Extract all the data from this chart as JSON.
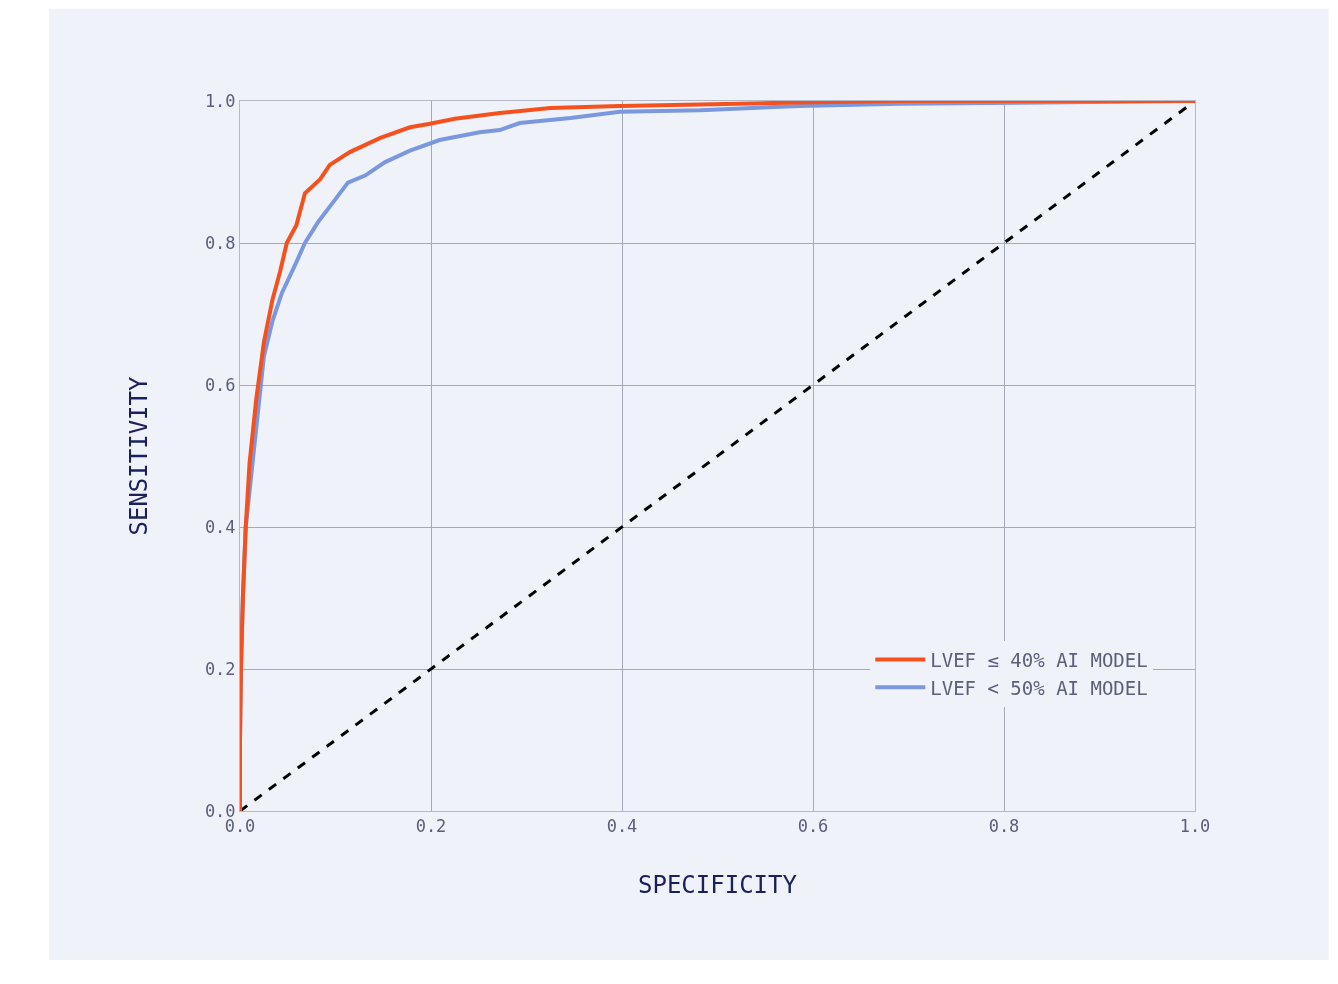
{
  "chart_data": {
    "type": "line",
    "xlabel": "SPECIFICITY",
    "ylabel": "SENSITIVITY",
    "series": [
      {
        "name": "LVEF ≤ 40% AI MODEL",
        "color": "#f4511e",
        "x": [
          0,
          0,
          0.001,
          0.003,
          0.006,
          0.01,
          0.017,
          0.025,
          0.034,
          0.042,
          0.049,
          0.059,
          0.068,
          0.084,
          0.094,
          0.115,
          0.147,
          0.178,
          0.199,
          0.225,
          0.272,
          0.325,
          0.398,
          0.482,
          0.586,
          0.691,
          1
        ],
        "values": [
          0,
          0.1,
          0.2,
          0.3,
          0.4,
          0.49,
          0.58,
          0.66,
          0.72,
          0.76,
          0.8,
          0.825,
          0.87,
          0.89,
          0.91,
          0.928,
          0.948,
          0.963,
          0.968,
          0.975,
          0.983,
          0.99,
          0.993,
          0.995,
          0.998,
          1,
          1
        ]
      },
      {
        "name": "LVEF < 50% AI MODEL",
        "color": "#7b97e0",
        "x": [
          0,
          0,
          0.001,
          0.003,
          0.006,
          0.01,
          0.017,
          0.025,
          0.034,
          0.044,
          0.058,
          0.068,
          0.082,
          0.099,
          0.113,
          0.131,
          0.152,
          0.178,
          0.209,
          0.251,
          0.272,
          0.293,
          0.346,
          0.398,
          0.482,
          0.586,
          0.691,
          1
        ],
        "values": [
          0,
          0.1,
          0.2,
          0.3,
          0.4,
          null,
          null,
          0.64,
          0.69,
          0.73,
          0.77,
          0.8,
          0.83,
          0.86,
          0.885,
          0.895,
          0.914,
          0.93,
          0.945,
          0.956,
          0.959,
          0.969,
          0.976,
          0.985,
          0.987,
          0.993,
          0.996,
          1
        ]
      },
      {
        "color": "#000000",
        "line_style": "dashed",
        "x": [
          0,
          1
        ],
        "values": [
          0,
          1
        ]
      }
    ],
    "xlim": [
      0,
      1
    ],
    "xticks": [
      {
        "value": 0,
        "label": "0.0"
      },
      0.2,
      0.4,
      0.6,
      0.8,
      {
        "value": 1,
        "label": "1.0"
      }
    ],
    "ylim": [
      0,
      1
    ],
    "yticks": [
      {
        "value": 0,
        "label": "0.0"
      },
      0.2,
      0.4,
      0.6,
      0.8,
      {
        "value": 1,
        "label": "1.0"
      }
    ],
    "grid": true,
    "legend": "bottom right"
  }
}
